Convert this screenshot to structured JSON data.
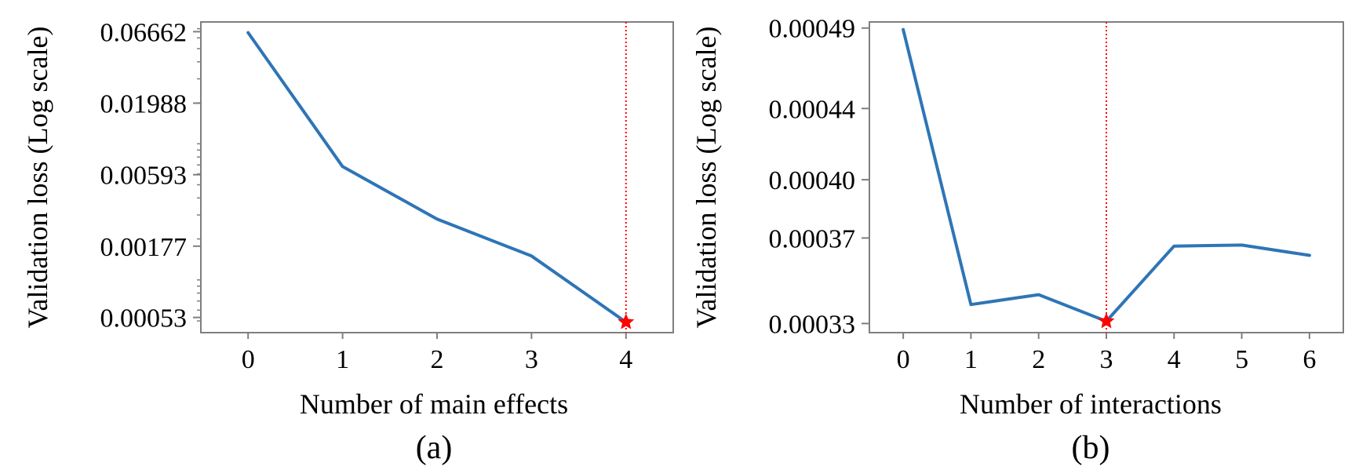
{
  "chart_data": [
    {
      "type": "line",
      "panel_label": "(a)",
      "xlabel": "Number of main effects",
      "ylabel": "Validation loss (Log scale)",
      "yscale": "log",
      "x": [
        0,
        1,
        2,
        3,
        4
      ],
      "series": [
        {
          "values": [
            0.0655,
            0.0068,
            0.0028,
            0.0015,
            0.00049
          ],
          "color": "#2e75b6"
        }
      ],
      "yticks": [
        0.06662,
        0.01988,
        0.00593,
        0.00177,
        0.00053
      ],
      "ytick_labels": [
        "0.06662",
        "0.01988",
        "0.00593",
        "0.00177",
        "0.00053"
      ],
      "xticks": [
        0,
        1,
        2,
        3,
        4
      ],
      "xtick_labels": [
        "0",
        "1",
        "2",
        "3",
        "4"
      ],
      "xlim": [
        -0.5,
        4.5
      ],
      "ylim": [
        0.00041,
        0.0785
      ],
      "optimum": {
        "x": 4,
        "y": 0.00049,
        "marker": "star",
        "color": "#ff0000"
      },
      "vline": {
        "x": 4,
        "style": "dotted",
        "color": "#ff0000"
      },
      "grid": false
    },
    {
      "type": "line",
      "panel_label": "(b)",
      "xlabel": "Number of interactions",
      "ylabel": "Validation loss (Log scale)",
      "yscale": "log",
      "x": [
        0,
        1,
        2,
        3,
        4,
        5,
        6
      ],
      "series": [
        {
          "values": [
            0.000489,
            0.0003385,
            0.000343,
            0.000331,
            0.000366,
            0.0003665,
            0.0003615
          ],
          "color": "#2e75b6"
        }
      ],
      "yticks": [
        0.00049,
        0.00044,
        0.0004,
        0.00037,
        0.00033
      ],
      "ytick_labels": [
        "0.00049",
        "0.00044",
        "0.00040",
        "0.00037",
        "0.00033"
      ],
      "xticks": [
        0,
        1,
        2,
        3,
        4,
        5,
        6
      ],
      "xtick_labels": [
        "0",
        "1",
        "2",
        "3",
        "4",
        "5",
        "6"
      ],
      "xlim": [
        -0.5,
        6.5
      ],
      "ylim": [
        0.000326,
        0.000494
      ],
      "optimum": {
        "x": 3,
        "y": 0.000331,
        "marker": "star",
        "color": "#ff0000"
      },
      "vline": {
        "x": 3,
        "style": "dotted",
        "color": "#ff0000"
      },
      "grid": false
    }
  ]
}
